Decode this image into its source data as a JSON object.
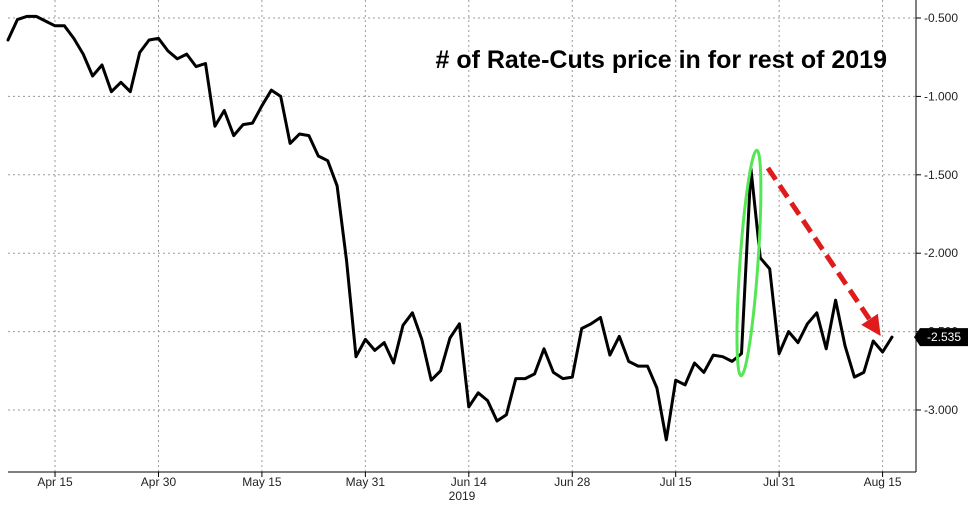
{
  "chart_data": {
    "type": "line",
    "title": "# of Rate-Cuts price in for rest of 2019",
    "xlabel": "2019",
    "ylabel": "",
    "ylim": [
      -3.35,
      -0.45
    ],
    "y_ticks": [
      {
        "value": -0.5,
        "label": "-0.500"
      },
      {
        "value": -1.0,
        "label": "-1.000"
      },
      {
        "value": -1.5,
        "label": "-1.500"
      },
      {
        "value": -2.0,
        "label": "-2.000"
      },
      {
        "value": -2.5,
        "label": "-2.500"
      },
      {
        "value": -3.0,
        "label": "-3.000"
      }
    ],
    "x_ticks": [
      {
        "index": 5,
        "label": "Apr 15"
      },
      {
        "index": 16,
        "label": "Apr 30"
      },
      {
        "index": 27,
        "label": "May 15"
      },
      {
        "index": 38,
        "label": "May 31"
      },
      {
        "index": 49,
        "label": "Jun 14"
      },
      {
        "index": 60,
        "label": "Jun 28"
      },
      {
        "index": 71,
        "label": "Jul 15"
      },
      {
        "index": 82,
        "label": "Jul 31"
      },
      {
        "index": 93,
        "label": "Aug 15"
      }
    ],
    "grid": true,
    "series": [
      {
        "color": "#000000",
        "values": [
          -0.64,
          -0.51,
          -0.49,
          -0.49,
          -0.52,
          -0.55,
          -0.55,
          -0.63,
          -0.73,
          -0.87,
          -0.8,
          -0.97,
          -0.91,
          -0.97,
          -0.72,
          -0.64,
          -0.63,
          -0.71,
          -0.76,
          -0.73,
          -0.81,
          -0.79,
          -1.19,
          -1.09,
          -1.25,
          -1.18,
          -1.17,
          -1.06,
          -0.96,
          -1.0,
          -1.3,
          -1.24,
          -1.25,
          -1.38,
          -1.41,
          -1.57,
          -2.05,
          -2.66,
          -2.55,
          -2.62,
          -2.57,
          -2.7,
          -2.46,
          -2.38,
          -2.55,
          -2.81,
          -2.75,
          -2.54,
          -2.45,
          -2.98,
          -2.89,
          -2.94,
          -3.07,
          -3.03,
          -2.8,
          -2.8,
          -2.77,
          -2.61,
          -2.76,
          -2.8,
          -2.79,
          -2.48,
          -2.45,
          -2.41,
          -2.65,
          -2.53,
          -2.69,
          -2.72,
          -2.72,
          -2.86,
          -3.19,
          -2.81,
          -2.84,
          -2.7,
          -2.76,
          -2.65,
          -2.66,
          -2.69,
          -2.64,
          -1.46,
          -2.03,
          -2.1,
          -2.64,
          -2.5,
          -2.57,
          -2.45,
          -2.38,
          -2.61,
          -2.3,
          -2.59,
          -2.79,
          -2.76,
          -2.56,
          -2.63,
          -2.535
        ]
      }
    ],
    "last_value_label": "-2.535",
    "annotations": {
      "highlight_ellipse_color": "#55e655",
      "arrow_color": "#e01b1b"
    }
  }
}
